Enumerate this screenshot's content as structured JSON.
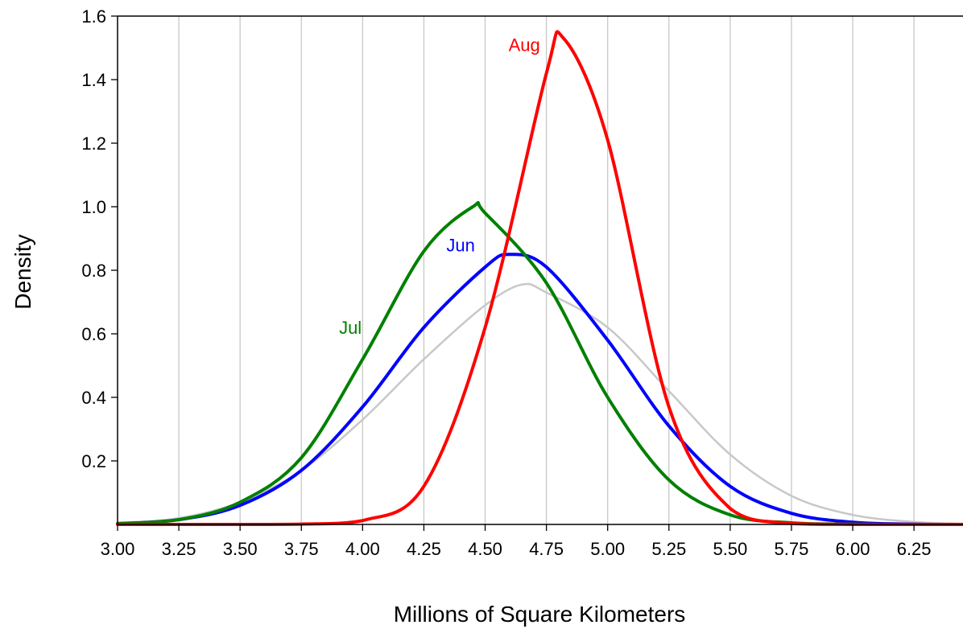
{
  "chart_data": {
    "type": "line",
    "title": "",
    "xlabel": "Millions of Square Kilometers",
    "ylabel": "Density",
    "xlim": [
      3.0,
      6.45
    ],
    "ylim": [
      0,
      1.6
    ],
    "xticks": [
      "3.00",
      "3.25",
      "3.50",
      "3.75",
      "4.00",
      "4.25",
      "4.50",
      "4.75",
      "5.00",
      "5.25",
      "5.50",
      "5.75",
      "6.00",
      "6.25"
    ],
    "yticks": [
      "0.2",
      "0.4",
      "0.6",
      "0.8",
      "1.0",
      "1.2",
      "1.4",
      "1.6"
    ],
    "grid": "vertical",
    "series": [
      {
        "name": "",
        "color": "#c8c8c8",
        "label_text": "",
        "x": [
          3.0,
          3.25,
          3.5,
          3.75,
          4.0,
          4.25,
          4.5,
          4.65,
          4.75,
          5.0,
          5.25,
          5.5,
          5.75,
          6.0,
          6.25,
          6.45
        ],
        "y": [
          0.005,
          0.02,
          0.07,
          0.17,
          0.33,
          0.52,
          0.69,
          0.755,
          0.73,
          0.62,
          0.42,
          0.22,
          0.09,
          0.03,
          0.008,
          0.002
        ]
      },
      {
        "name": "Jun",
        "color": "#0000ff",
        "label_text": "Jun",
        "x": [
          3.0,
          3.25,
          3.5,
          3.75,
          4.0,
          4.25,
          4.5,
          4.6,
          4.75,
          5.0,
          5.25,
          5.5,
          5.75,
          6.0,
          6.25,
          6.45
        ],
        "y": [
          0.002,
          0.015,
          0.06,
          0.17,
          0.37,
          0.62,
          0.81,
          0.85,
          0.81,
          0.58,
          0.31,
          0.12,
          0.035,
          0.007,
          0.001,
          0.0
        ]
      },
      {
        "name": "Jul",
        "color": "#008000",
        "label_text": "Jul",
        "x": [
          3.0,
          3.25,
          3.5,
          3.75,
          4.0,
          4.25,
          4.45,
          4.5,
          4.75,
          5.0,
          5.25,
          5.5,
          5.75,
          6.0,
          6.25,
          6.45
        ],
        "y": [
          0.003,
          0.015,
          0.07,
          0.21,
          0.52,
          0.86,
          1.0,
          0.98,
          0.76,
          0.4,
          0.14,
          0.03,
          0.005,
          0.001,
          0.0,
          0.0
        ]
      },
      {
        "name": "Aug",
        "color": "#ff0000",
        "label_text": "Aug",
        "x": [
          3.0,
          3.5,
          3.75,
          4.0,
          4.25,
          4.5,
          4.75,
          4.82,
          5.0,
          5.25,
          5.5,
          5.75,
          6.0,
          6.45
        ],
        "y": [
          0.0,
          0.0,
          0.001,
          0.012,
          0.12,
          0.62,
          1.42,
          1.53,
          1.21,
          0.37,
          0.05,
          0.003,
          0.0,
          0.0
        ]
      }
    ]
  }
}
